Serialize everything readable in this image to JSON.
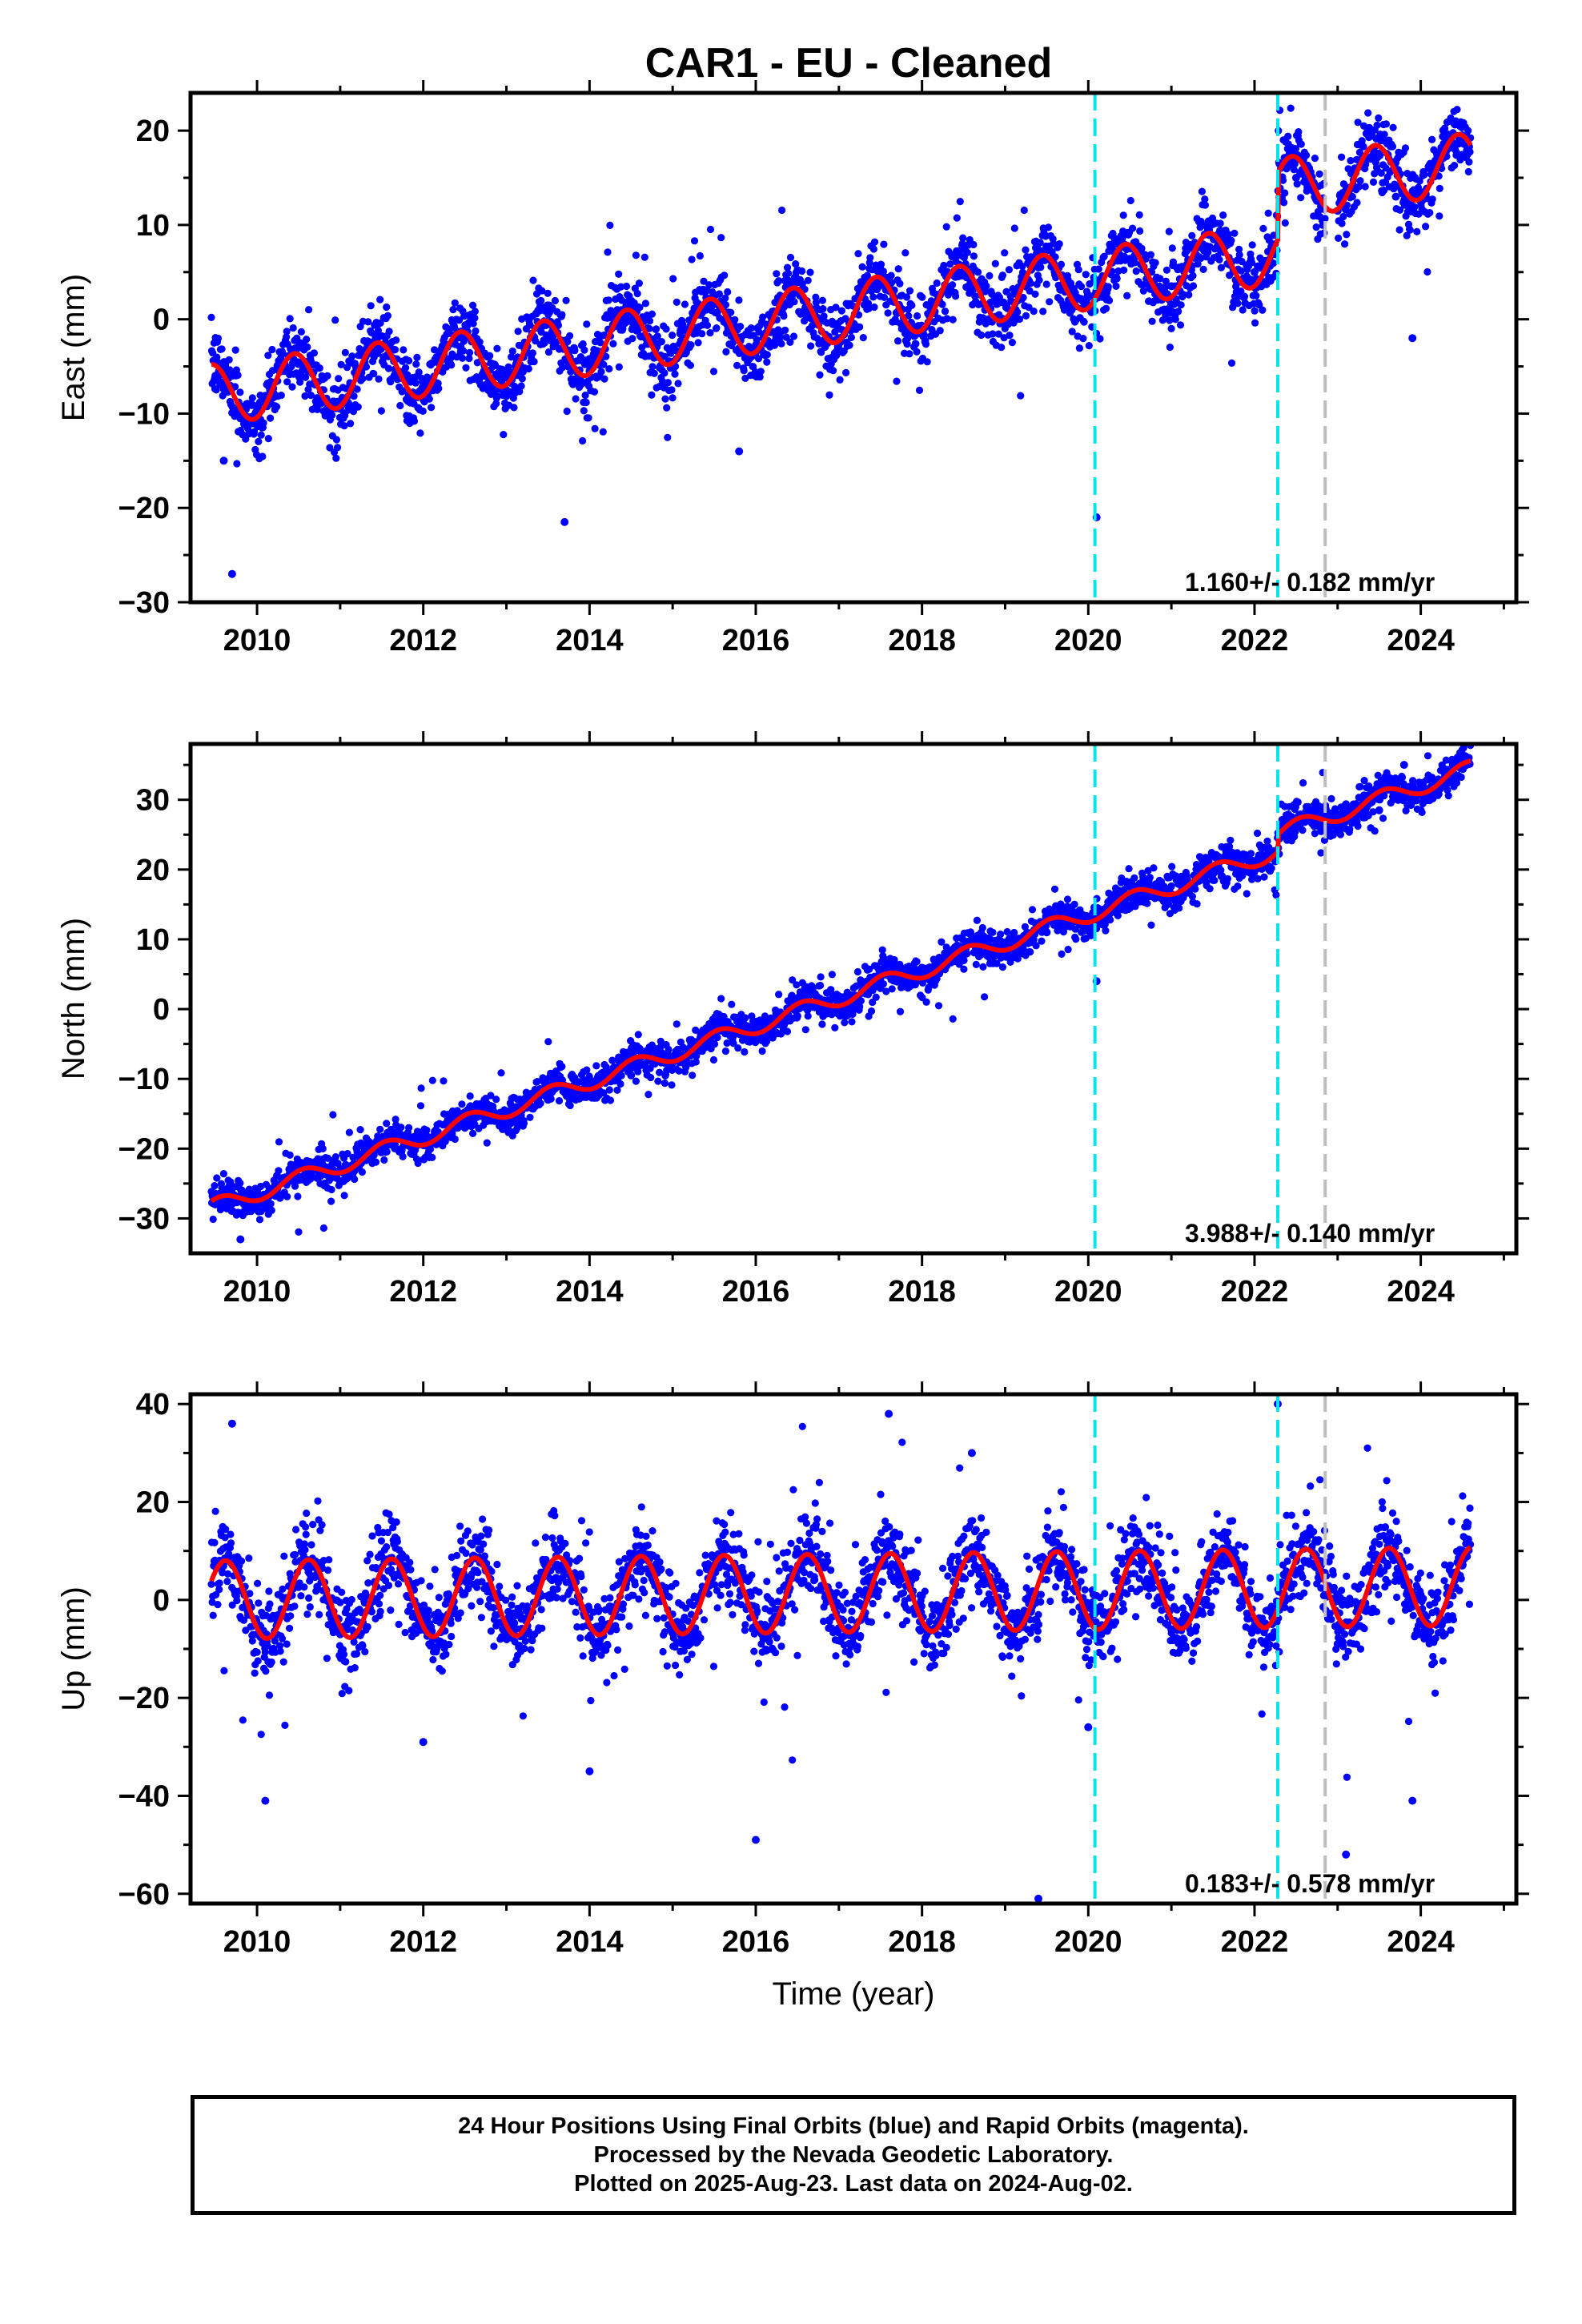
{
  "title": "CAR1  - EU - Cleaned",
  "colors": {
    "points": "#0000ff",
    "model": "#ff0000",
    "equipment_line": "#00e5ee",
    "other_line": "#bebebe",
    "frame": "#000000"
  },
  "footer": {
    "line1": "24 Hour Positions Using Final Orbits (blue) and Rapid Orbits (magenta).",
    "line2": "Processed by the Nevada Geodetic Laboratory.",
    "line3": "Plotted on 2025-Aug-23. Last data on 2024-Aug-02."
  },
  "chart_data": [
    {
      "type": "scatter",
      "title": "CAR1  - EU - Cleaned",
      "ylabel": "East (mm)",
      "xlabel": "",
      "xlim": [
        2009.2,
        2025.15
      ],
      "ylim": [
        -30,
        24
      ],
      "xticks": [
        2010,
        2012,
        2014,
        2016,
        2018,
        2020,
        2022,
        2024
      ],
      "yticks": [
        -30,
        -20,
        -10,
        0,
        10,
        20
      ],
      "vlines": [
        {
          "x": 2020.08,
          "style": "cyan-dashed"
        },
        {
          "x": 2022.28,
          "style": "cyan-dashed"
        },
        {
          "x": 2022.85,
          "style": "gray-dashed"
        }
      ],
      "rate_text": "1.160+/- 0.182 mm/yr",
      "model": {
        "start": 2009.45,
        "end": 2024.6,
        "rate": 1.16,
        "offset_at_start": -8.0,
        "annual_amplitude": 3.2,
        "annual_peak": 0.45,
        "steps": [
          {
            "x": 2022.28,
            "size": 7.0
          }
        ]
      },
      "series": [
        {
          "name": "",
          "x": [
            2009.5,
            2009.6,
            2009.7,
            2009.8,
            2010.0,
            2010.3,
            2010.6,
            2011.0,
            2011.4,
            2011.8,
            2012.0,
            2012.4,
            2012.8,
            2013.0,
            2013.4,
            2013.7,
            2014.0,
            2014.4,
            2014.8,
            2015.0,
            2015.4,
            2015.8,
            2016.0,
            2016.4,
            2016.8,
            2017.0,
            2017.4,
            2017.8,
            2018.0,
            2018.4,
            2018.8,
            2019.0,
            2019.4,
            2019.8,
            2020.0,
            2020.1,
            2020.4,
            2020.8,
            2021.0,
            2021.4,
            2021.8,
            2022.0,
            2022.3,
            2022.5,
            2022.8,
            2023.0,
            2023.4,
            2023.7,
            2023.9,
            2024.0,
            2024.3,
            2024.5
          ],
          "y": [
            -6.0,
            -15.0,
            -27.0,
            -10.5,
            -11.0,
            -5.0,
            -4.5,
            -9.5,
            -3.5,
            -8.5,
            -8.0,
            -2.0,
            -7.0,
            -7.5,
            -1.0,
            -21.5,
            -5.5,
            0.5,
            -4.0,
            -4.5,
            1.5,
            -14.0,
            -3.5,
            2.5,
            -2.5,
            -2.0,
            3.5,
            -1.5,
            -1.0,
            4.5,
            0.0,
            0.0,
            5.5,
            1.0,
            1.5,
            -21.0,
            8.0,
            3.0,
            3.5,
            9.0,
            4.0,
            5.0,
            16.5,
            15.0,
            12.0,
            11.5,
            17.0,
            13.0,
            -2.0,
            12.5,
            18.0,
            19.5
          ]
        }
      ]
    },
    {
      "type": "scatter",
      "ylabel": "North (mm)",
      "xlabel": "",
      "xlim": [
        2009.2,
        2025.15
      ],
      "ylim": [
        -35,
        38
      ],
      "xticks": [
        2010,
        2012,
        2014,
        2016,
        2018,
        2020,
        2022,
        2024
      ],
      "yticks": [
        -30,
        -20,
        -10,
        0,
        10,
        20,
        30
      ],
      "vlines": [
        {
          "x": 2020.08,
          "style": "cyan-dashed"
        },
        {
          "x": 2022.28,
          "style": "cyan-dashed"
        },
        {
          "x": 2022.85,
          "style": "gray-dashed"
        }
      ],
      "rate_text": "3.988+/- 0.140 mm/yr",
      "model": {
        "start": 2009.45,
        "end": 2024.6,
        "rate": 3.988,
        "offset_at_start": -28.5,
        "annual_amplitude": 1.2,
        "annual_peak": 0.55,
        "steps": [
          {
            "x": 2022.28,
            "size": 2.5
          }
        ]
      },
      "series": [
        {
          "name": "",
          "x": [
            2009.5,
            2009.8,
            2010.0,
            2010.5,
            2011.0,
            2011.5,
            2012.0,
            2012.5,
            2013.0,
            2013.5,
            2014.0,
            2014.5,
            2015.0,
            2015.5,
            2016.0,
            2016.5,
            2017.0,
            2017.5,
            2018.0,
            2018.5,
            2019.0,
            2019.5,
            2020.0,
            2020.1,
            2020.5,
            2021.0,
            2021.5,
            2022.0,
            2022.3,
            2022.8,
            2023.0,
            2023.5,
            2023.8,
            2024.3,
            2024.5
          ],
          "y": [
            -28.0,
            -33.0,
            -27.5,
            -24.5,
            -23.0,
            -20.5,
            -19.5,
            -17.0,
            -15.0,
            -13.0,
            -11.0,
            -9.5,
            -7.0,
            -5.0,
            -3.0,
            -1.0,
            1.0,
            3.0,
            5.0,
            7.0,
            9.0,
            11.0,
            12.5,
            4.0,
            14.5,
            16.5,
            18.5,
            20.5,
            24.5,
            25.5,
            26.5,
            28.5,
            35.0,
            33.0,
            35.5
          ]
        }
      ]
    },
    {
      "type": "scatter",
      "ylabel": "Up (mm)",
      "xlabel": "Time (year)",
      "xlim": [
        2009.2,
        2025.15
      ],
      "ylim": [
        -62,
        42
      ],
      "xticks": [
        2010,
        2012,
        2014,
        2016,
        2018,
        2020,
        2022,
        2024
      ],
      "yticks": [
        -60,
        -40,
        -20,
        0,
        20,
        40
      ],
      "vlines": [
        {
          "x": 2020.08,
          "style": "cyan-dashed"
        },
        {
          "x": 2022.28,
          "style": "cyan-dashed"
        },
        {
          "x": 2022.85,
          "style": "gray-dashed"
        }
      ],
      "rate_text": "0.183+/- 0.578 mm/yr",
      "model": {
        "start": 2009.45,
        "end": 2024.6,
        "rate": 0.183,
        "offset_at_start": 0.0,
        "annual_amplitude": 8.0,
        "annual_peak": 0.62,
        "steps": []
      },
      "series": [
        {
          "name": "",
          "x": [
            2009.55,
            2009.7,
            2010.0,
            2010.1,
            2010.6,
            2011.0,
            2011.6,
            2012.0,
            2012.6,
            2013.0,
            2013.6,
            2014.0,
            2014.6,
            2015.0,
            2015.6,
            2016.0,
            2016.6,
            2017.0,
            2017.6,
            2018.0,
            2018.6,
            2019.0,
            2019.4,
            2019.6,
            2020.0,
            2020.6,
            2021.0,
            2021.6,
            2022.0,
            2022.28,
            2022.6,
            2023.0,
            2023.1,
            2023.6,
            2023.9,
            2024.2,
            2024.5
          ],
          "y": [
            8.0,
            36.0,
            -7.0,
            -41.0,
            8.0,
            -7.0,
            8.5,
            -29.0,
            9.0,
            -6.0,
            9.0,
            -35.0,
            9.5,
            -6.0,
            9.5,
            -49.0,
            9.5,
            -6.0,
            38.0,
            -6.0,
            30.0,
            -6.0,
            -61.0,
            10.0,
            -26.0,
            10.0,
            -6.0,
            10.0,
            -6.0,
            40.0,
            8.0,
            -9.0,
            -52.0,
            7.0,
            -41.0,
            -5.0,
            7.0
          ]
        }
      ]
    }
  ]
}
